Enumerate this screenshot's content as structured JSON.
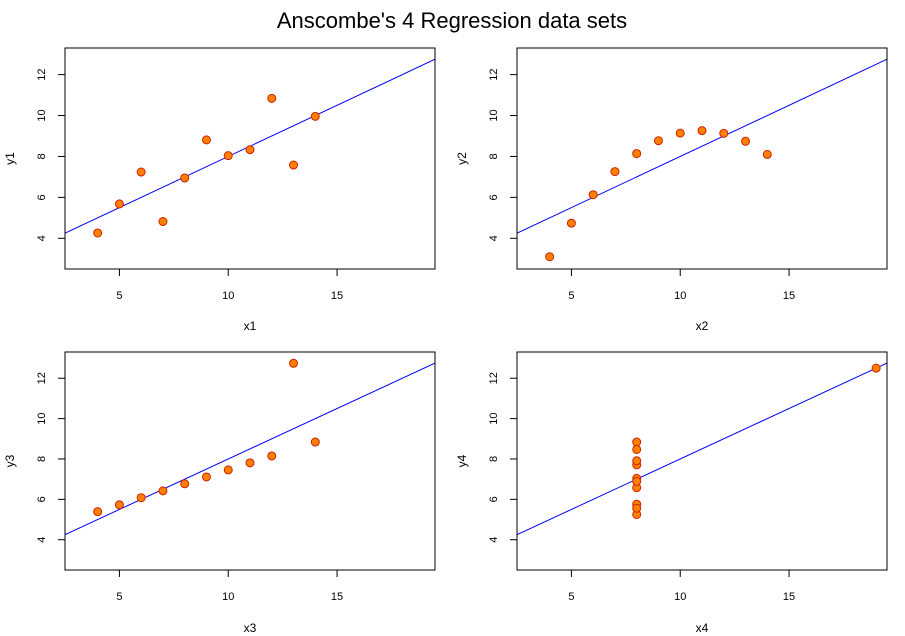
{
  "figure": {
    "title": "Anscombe's 4 Regression data sets",
    "point_fill": "#FF8000",
    "point_stroke": "#CC2200",
    "line_color": "#0000FF"
  },
  "chart_data": [
    {
      "type": "scatter",
      "xlabel": "x1",
      "ylabel": "y1",
      "xlim": [
        2.5,
        19.5
      ],
      "ylim": [
        2.5,
        13.3
      ],
      "xticks": [
        5,
        10,
        15
      ],
      "yticks": [
        4,
        6,
        8,
        10,
        12
      ],
      "grid": false,
      "x": [
        10,
        8,
        13,
        9,
        11,
        14,
        6,
        4,
        12,
        7,
        5
      ],
      "y": [
        8.04,
        6.95,
        7.58,
        8.81,
        8.33,
        9.96,
        7.24,
        4.26,
        10.84,
        4.82,
        5.68
      ],
      "fit_line": {
        "intercept": 3.0,
        "slope": 0.5
      }
    },
    {
      "type": "scatter",
      "xlabel": "x2",
      "ylabel": "y2",
      "xlim": [
        2.5,
        19.5
      ],
      "ylim": [
        2.5,
        13.3
      ],
      "xticks": [
        5,
        10,
        15
      ],
      "yticks": [
        4,
        6,
        8,
        10,
        12
      ],
      "grid": false,
      "x": [
        10,
        8,
        13,
        9,
        11,
        14,
        6,
        4,
        12,
        7,
        5
      ],
      "y": [
        9.14,
        8.14,
        8.74,
        8.77,
        9.26,
        8.1,
        6.13,
        3.1,
        9.13,
        7.26,
        4.74
      ],
      "fit_line": {
        "intercept": 3.0,
        "slope": 0.5
      }
    },
    {
      "type": "scatter",
      "xlabel": "x3",
      "ylabel": "y3",
      "xlim": [
        2.5,
        19.5
      ],
      "ylim": [
        2.5,
        13.3
      ],
      "xticks": [
        5,
        10,
        15
      ],
      "yticks": [
        4,
        6,
        8,
        10,
        12
      ],
      "grid": false,
      "x": [
        10,
        8,
        13,
        9,
        11,
        14,
        6,
        4,
        12,
        7,
        5
      ],
      "y": [
        7.46,
        6.77,
        12.74,
        7.11,
        7.81,
        8.84,
        6.08,
        5.39,
        8.15,
        6.42,
        5.73
      ],
      "fit_line": {
        "intercept": 3.0,
        "slope": 0.5
      }
    },
    {
      "type": "scatter",
      "xlabel": "x4",
      "ylabel": "y4",
      "xlim": [
        2.5,
        19.5
      ],
      "ylim": [
        2.5,
        13.3
      ],
      "xticks": [
        5,
        10,
        15
      ],
      "yticks": [
        4,
        6,
        8,
        10,
        12
      ],
      "grid": false,
      "x": [
        8,
        8,
        8,
        8,
        8,
        8,
        8,
        19,
        8,
        8,
        8
      ],
      "y": [
        6.58,
        5.76,
        7.71,
        8.84,
        8.47,
        7.04,
        5.25,
        12.5,
        5.56,
        7.91,
        6.89
      ],
      "fit_line": {
        "intercept": 3.0,
        "slope": 0.5
      }
    }
  ]
}
